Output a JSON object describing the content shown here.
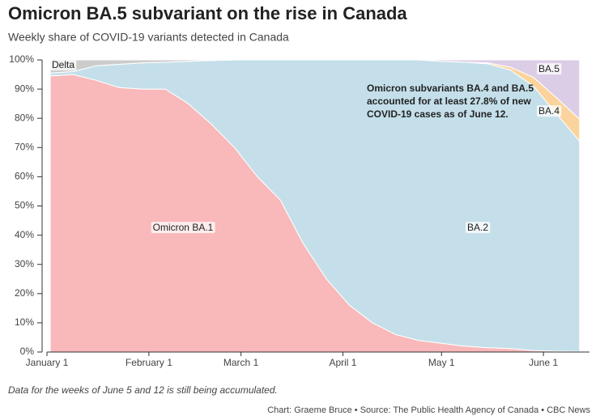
{
  "chart_data": {
    "type": "stacked-area",
    "title": "Omicron BA.5 subvariant on the rise in Canada",
    "subtitle": "Weekly share of COVID-19 variants detected in Canada",
    "annotation": [
      "Omicron subvariants BA.4 and BA.5",
      "accounted for at least 27.8% of new",
      "COVID-19 cases as of June 12."
    ],
    "note": "Data for the weeks of June 5 and 12 is still being accumulated.",
    "source": "Chart: Graeme Bruce • Source: The Public Health Agency of Canada • CBC News",
    "x": [
      "01-02",
      "01-09",
      "01-16",
      "01-23",
      "01-30",
      "02-06",
      "02-13",
      "02-20",
      "02-27",
      "03-06",
      "03-13",
      "03-20",
      "03-27",
      "04-03",
      "04-10",
      "04-17",
      "04-24",
      "05-01",
      "05-08",
      "05-15",
      "05-22",
      "05-29",
      "06-05",
      "06-12"
    ],
    "series": [
      {
        "name": "Omicron BA.1",
        "color": "#f9b8b9",
        "values": [
          94.5,
          95,
          93,
          90.5,
          90,
          90,
          85,
          78,
          70,
          60,
          52,
          37,
          25,
          16,
          10,
          6,
          4,
          3,
          2,
          1.5,
          1.2,
          0.5,
          0.3,
          0.2
        ]
      },
      {
        "name": "BA.2",
        "color": "#c4dfea",
        "values": [
          1,
          1,
          5,
          8,
          9,
          9.2,
          14.5,
          21.8,
          30,
          40,
          48,
          63,
          75,
          84,
          90,
          94,
          96,
          96.5,
          97.2,
          97.2,
          95.3,
          90.5,
          81.2,
          72
        ]
      },
      {
        "name": "BA.4",
        "color": "#fbd39c",
        "values": [
          0,
          0,
          0,
          0,
          0,
          0,
          0,
          0,
          0,
          0,
          0,
          0,
          0,
          0,
          0,
          0,
          0,
          0,
          0,
          0.3,
          1,
          3,
          5.5,
          7.5
        ]
      },
      {
        "name": "BA.5",
        "color": "#dccde6",
        "values": [
          0,
          0,
          0,
          0,
          0,
          0,
          0,
          0,
          0,
          0,
          0,
          0,
          0,
          0,
          0,
          0,
          0,
          0.5,
          0.8,
          1,
          2.5,
          6,
          13,
          20.3
        ]
      },
      {
        "name": "Delta",
        "color": "#cccccc",
        "values": [
          4.5,
          4,
          2,
          1.5,
          1,
          0.8,
          0.5,
          0.2,
          0,
          0,
          0,
          0,
          0,
          0,
          0,
          0,
          0,
          0,
          0,
          0,
          0,
          0,
          0,
          0
        ]
      }
    ],
    "xlim": [
      "01-01",
      "06-15"
    ],
    "xticks": [
      {
        "value": "01-01",
        "label": "January 1"
      },
      {
        "value": "02-01",
        "label": "February 1"
      },
      {
        "value": "03-01",
        "label": "March 1"
      },
      {
        "value": "04-01",
        "label": "April 1"
      },
      {
        "value": "05-01",
        "label": "May 1"
      },
      {
        "value": "06-01",
        "label": "June 1"
      }
    ],
    "ylim": [
      0,
      100
    ],
    "yticks": [
      {
        "value": 0,
        "label": "0%"
      },
      {
        "value": 10,
        "label": "10%"
      },
      {
        "value": 20,
        "label": "20%"
      },
      {
        "value": 30,
        "label": "30%"
      },
      {
        "value": 40,
        "label": "40%"
      },
      {
        "value": 50,
        "label": "50%"
      },
      {
        "value": 60,
        "label": "60%"
      },
      {
        "value": 70,
        "label": "70%"
      },
      {
        "value": 80,
        "label": "80%"
      },
      {
        "value": 90,
        "label": "90%"
      },
      {
        "value": 100,
        "label": "100%"
      }
    ]
  }
}
